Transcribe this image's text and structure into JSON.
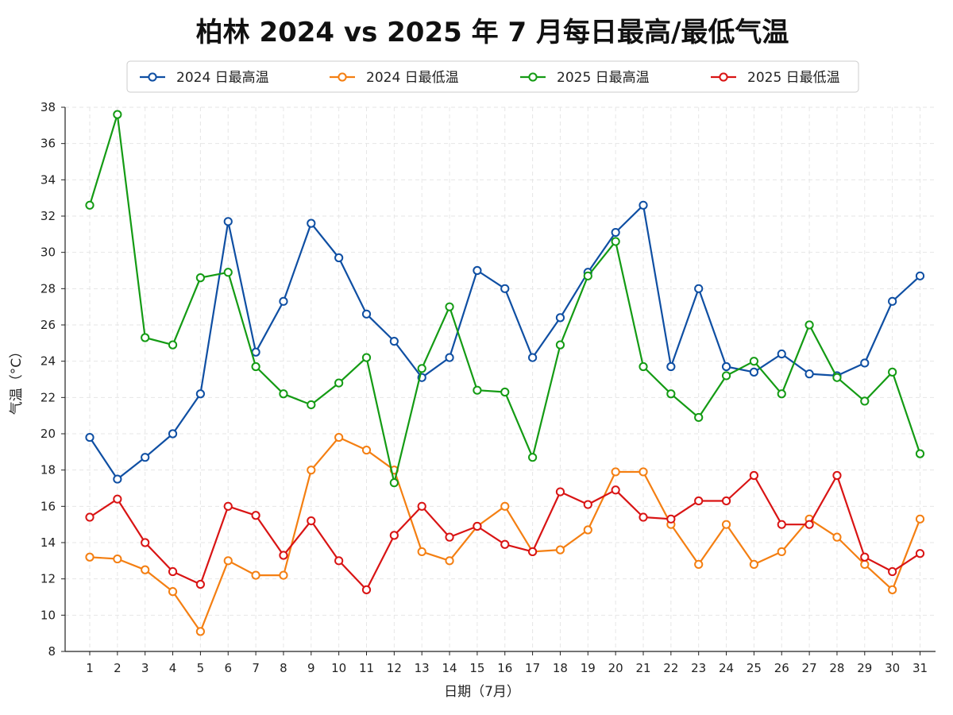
{
  "chart_data": {
    "type": "line",
    "title": "柏林 2024 vs 2025 年 7 月每日最高/最低气温",
    "xlabel": "日期（7月）",
    "ylabel": "气温（°C）",
    "ylim": [
      8,
      38
    ],
    "yticks": [
      8,
      10,
      12,
      14,
      16,
      18,
      20,
      22,
      24,
      26,
      28,
      30,
      32,
      34,
      36,
      38
    ],
    "grid": true,
    "legend_position": "top",
    "x": [
      1,
      2,
      3,
      4,
      5,
      6,
      7,
      8,
      9,
      10,
      11,
      12,
      13,
      14,
      15,
      16,
      17,
      18,
      19,
      20,
      21,
      22,
      23,
      24,
      25,
      26,
      27,
      28,
      29,
      30,
      31
    ],
    "series": [
      {
        "name": "2024 日最高温",
        "color": "#0f4fa3",
        "values": [
          19.8,
          17.5,
          18.7,
          20.0,
          22.2,
          31.7,
          24.5,
          27.3,
          31.6,
          29.7,
          26.6,
          25.1,
          23.1,
          24.2,
          29.0,
          28.0,
          24.2,
          26.4,
          28.9,
          31.1,
          32.6,
          23.7,
          28.0,
          23.7,
          23.4,
          24.4,
          23.3,
          23.2,
          23.9,
          27.3,
          28.7
        ]
      },
      {
        "name": "2024 日最低温",
        "color": "#f47f12",
        "values": [
          13.2,
          13.1,
          12.5,
          11.3,
          9.1,
          13.0,
          12.2,
          12.2,
          18.0,
          19.8,
          19.1,
          18.0,
          13.5,
          13.0,
          14.9,
          16.0,
          13.5,
          13.6,
          14.7,
          17.9,
          17.9,
          15.0,
          12.8,
          15.0,
          12.8,
          13.5,
          15.3,
          14.3,
          12.8,
          11.4,
          15.3
        ]
      },
      {
        "name": "2025 日最高温",
        "color": "#149b14",
        "values": [
          32.6,
          37.6,
          25.3,
          24.9,
          28.6,
          28.9,
          23.7,
          22.2,
          21.6,
          22.8,
          24.2,
          17.3,
          23.6,
          27.0,
          22.4,
          22.3,
          18.7,
          24.9,
          28.7,
          30.6,
          23.7,
          22.2,
          20.9,
          23.2,
          24.0,
          22.2,
          26.0,
          23.1,
          21.8,
          23.4,
          18.9
        ]
      },
      {
        "name": "2025 日最低温",
        "color": "#d91414",
        "values": [
          15.4,
          16.4,
          14.0,
          12.4,
          11.7,
          16.0,
          15.5,
          13.3,
          15.2,
          13.0,
          11.4,
          14.4,
          16.0,
          14.3,
          14.9,
          13.9,
          13.5,
          16.8,
          16.1,
          16.9,
          15.4,
          15.3,
          16.3,
          16.3,
          17.7,
          15.0,
          15.0,
          17.7,
          13.2,
          12.4,
          13.4
        ]
      }
    ]
  }
}
